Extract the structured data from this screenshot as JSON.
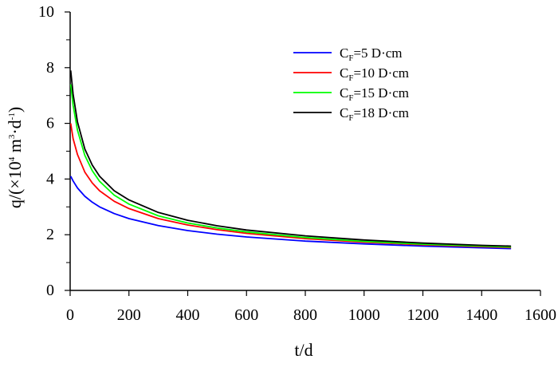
{
  "chart_data": {
    "type": "line",
    "title": "",
    "xlabel": "t/d",
    "ylabel_parts": [
      "q/(×10",
      "4",
      " m",
      "3",
      "·d",
      "-1",
      ")"
    ],
    "xlim": [
      0,
      1600
    ],
    "ylim": [
      0,
      10
    ],
    "xticks": [
      0,
      200,
      400,
      600,
      800,
      1000,
      1200,
      1400,
      1600
    ],
    "xtick_labels": [
      "0",
      "200",
      "400",
      "600",
      "800",
      "1000",
      "1200",
      "1400",
      "1600"
    ],
    "yticks": [
      0,
      2,
      4,
      6,
      8,
      10
    ],
    "ytick_labels": [
      "0",
      "2",
      "4",
      "6",
      "8",
      "10"
    ],
    "legend_position": "top-right",
    "x": [
      2,
      10,
      25,
      50,
      75,
      100,
      150,
      200,
      300,
      400,
      500,
      600,
      800,
      1000,
      1200,
      1400,
      1500
    ],
    "series": [
      {
        "name": "C_F=5 D·cm",
        "legend_main": "C",
        "legend_sub": "F",
        "legend_rest": "=5 D·cm",
        "color": "#0000ff",
        "values": [
          4.1,
          3.93,
          3.68,
          3.38,
          3.17,
          3.0,
          2.76,
          2.58,
          2.33,
          2.15,
          2.02,
          1.92,
          1.77,
          1.67,
          1.59,
          1.53,
          1.5
        ]
      },
      {
        "name": "C_F=10 D·cm",
        "legend_main": "C",
        "legend_sub": "F",
        "legend_rest": "=10 D·cm",
        "color": "#ff0000",
        "values": [
          6.0,
          5.45,
          4.88,
          4.25,
          3.86,
          3.58,
          3.2,
          2.94,
          2.58,
          2.35,
          2.18,
          2.05,
          1.86,
          1.73,
          1.64,
          1.57,
          1.54
        ]
      },
      {
        "name": "C_F=15 D·cm",
        "legend_main": "C",
        "legend_sub": "F",
        "legend_rest": "=15 D·cm",
        "color": "#00ff00",
        "values": [
          7.4,
          6.65,
          5.75,
          4.85,
          4.3,
          3.92,
          3.42,
          3.1,
          2.68,
          2.42,
          2.24,
          2.1,
          1.9,
          1.76,
          1.66,
          1.59,
          1.56
        ]
      },
      {
        "name": "C_F=18 D·cm",
        "legend_main": "C",
        "legend_sub": "F",
        "legend_rest": "=18 D·cm",
        "color": "#000000",
        "values": [
          7.9,
          7.05,
          6.05,
          5.08,
          4.5,
          4.1,
          3.58,
          3.25,
          2.8,
          2.52,
          2.32,
          2.17,
          1.96,
          1.81,
          1.7,
          1.62,
          1.59
        ]
      }
    ]
  }
}
